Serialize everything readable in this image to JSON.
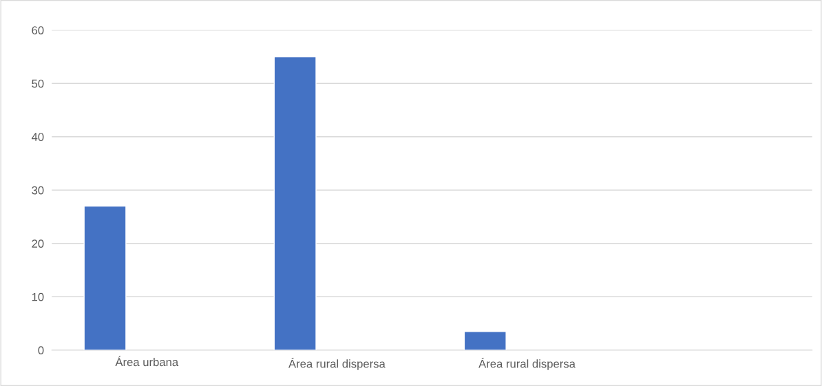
{
  "chart_data": {
    "type": "bar",
    "categories": [
      "Área urbana",
      "Área rural dispersa",
      "Área rural dispersa",
      null
    ],
    "values": [
      27,
      55,
      3.5,
      null
    ],
    "color": "#4472c4",
    "ylim": [
      0,
      60
    ],
    "yticks": [
      0,
      10,
      20,
      30,
      40,
      50,
      60
    ],
    "grid": "y"
  }
}
